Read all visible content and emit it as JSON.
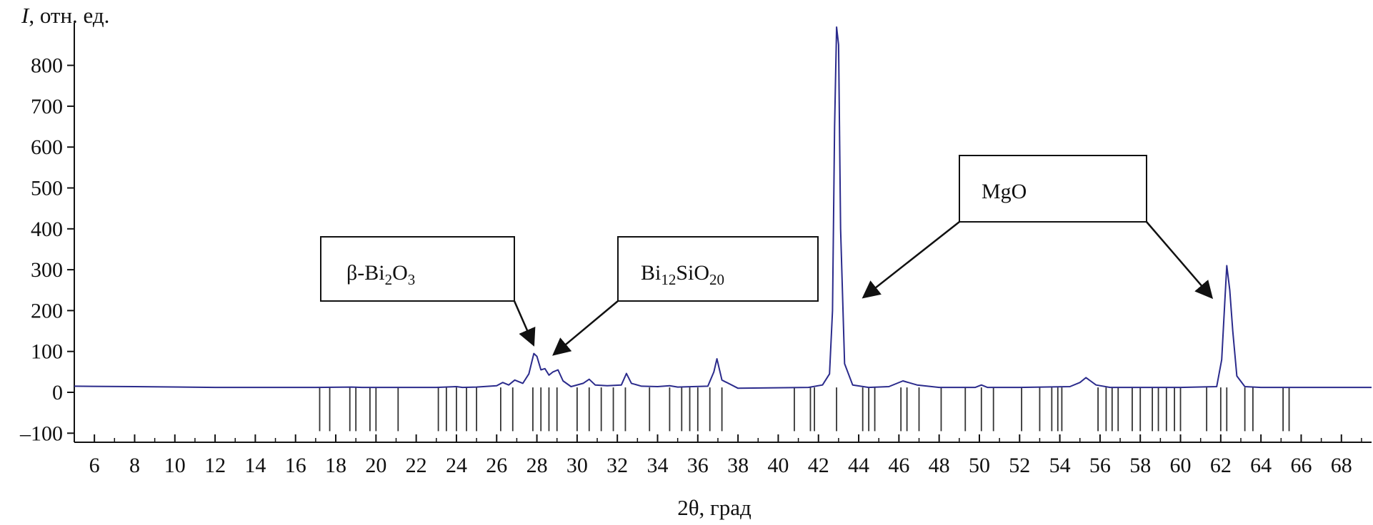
{
  "chart_data": {
    "type": "line",
    "xlabel": "2θ, град",
    "ylabel_italic": "I",
    "ylabel_rest": ", отн. ед.",
    "xlim": [
      5,
      69.5
    ],
    "ylim": [
      -110,
      880
    ],
    "xticks": [
      6,
      8,
      10,
      12,
      14,
      16,
      18,
      20,
      22,
      24,
      26,
      28,
      30,
      32,
      34,
      36,
      38,
      40,
      42,
      44,
      46,
      48,
      50,
      52,
      54,
      56,
      58,
      60,
      62,
      64,
      66,
      68
    ],
    "yticks": [
      -100,
      100,
      200,
      300,
      400,
      500,
      600,
      700,
      800
    ],
    "ytick_zero": 0,
    "series": [
      {
        "color": "#2b2b8c",
        "x": [
          5.0,
          8.0,
          12.0,
          17.0,
          18.8,
          19.3,
          20.0,
          23.0,
          24.0,
          24.3,
          25.0,
          26.0,
          26.3,
          26.6,
          26.9,
          27.3,
          27.6,
          27.85,
          28.0,
          28.2,
          28.4,
          28.6,
          28.8,
          29.05,
          29.3,
          29.7,
          30.3,
          30.6,
          30.9,
          31.5,
          32.2,
          32.45,
          32.7,
          33.2,
          34.0,
          34.6,
          35.0,
          36.5,
          36.8,
          36.95,
          37.2,
          38.0,
          41.5,
          42.2,
          42.55,
          42.7,
          42.8,
          42.9,
          43.0,
          43.1,
          43.3,
          43.7,
          44.5,
          45.5,
          46.2,
          46.9,
          48.0,
          49.8,
          50.1,
          50.4,
          52.0,
          54.5,
          55.0,
          55.3,
          55.8,
          56.5,
          58.0,
          60.0,
          61.8,
          62.05,
          62.2,
          62.3,
          62.45,
          62.6,
          62.8,
          63.2,
          64.0,
          66.0,
          68.0,
          68.5,
          69.5
        ],
        "y": [
          15,
          14,
          12,
          12,
          13,
          12,
          12,
          12,
          14,
          12,
          13,
          16,
          24,
          18,
          30,
          22,
          45,
          95,
          88,
          55,
          58,
          42,
          50,
          55,
          28,
          14,
          22,
          32,
          18,
          16,
          18,
          46,
          22,
          15,
          14,
          16,
          13,
          15,
          50,
          82,
          30,
          10,
          12,
          18,
          45,
          200,
          650,
          900,
          850,
          400,
          70,
          18,
          12,
          14,
          28,
          18,
          12,
          12,
          18,
          12,
          12,
          14,
          24,
          36,
          18,
          12,
          12,
          12,
          14,
          80,
          220,
          310,
          250,
          150,
          40,
          14,
          12,
          12,
          12,
          12,
          12
        ]
      }
    ],
    "reference_lines": [
      {
        "x": 17.2,
        "h": -95
      },
      {
        "x": 17.7,
        "h": -95
      },
      {
        "x": 18.7,
        "h": -95
      },
      {
        "x": 19.0,
        "h": -95
      },
      {
        "x": 19.7,
        "h": -95
      },
      {
        "x": 20.0,
        "h": -95
      },
      {
        "x": 21.1,
        "h": -95
      },
      {
        "x": 23.1,
        "h": -95
      },
      {
        "x": 23.5,
        "h": -95
      },
      {
        "x": 24.0,
        "h": -95
      },
      {
        "x": 24.5,
        "h": -95
      },
      {
        "x": 25.0,
        "h": -95
      },
      {
        "x": 26.2,
        "h": -95
      },
      {
        "x": 26.8,
        "h": -95
      },
      {
        "x": 27.8,
        "h": -95
      },
      {
        "x": 28.2,
        "h": -95
      },
      {
        "x": 28.6,
        "h": -95
      },
      {
        "x": 29.0,
        "h": -95
      },
      {
        "x": 30.0,
        "h": -95
      },
      {
        "x": 30.6,
        "h": -95
      },
      {
        "x": 31.2,
        "h": -95
      },
      {
        "x": 31.8,
        "h": -95
      },
      {
        "x": 32.4,
        "h": -95
      },
      {
        "x": 33.6,
        "h": -95
      },
      {
        "x": 34.6,
        "h": -95
      },
      {
        "x": 35.2,
        "h": -95
      },
      {
        "x": 35.6,
        "h": -95
      },
      {
        "x": 36.0,
        "h": -95
      },
      {
        "x": 36.6,
        "h": -95
      },
      {
        "x": 37.2,
        "h": -95
      },
      {
        "x": 40.8,
        "h": -95
      },
      {
        "x": 41.6,
        "h": -95
      },
      {
        "x": 41.8,
        "h": -95
      },
      {
        "x": 42.9,
        "h": -95
      },
      {
        "x": 44.2,
        "h": -95
      },
      {
        "x": 44.5,
        "h": -95
      },
      {
        "x": 44.8,
        "h": -95
      },
      {
        "x": 46.1,
        "h": -95
      },
      {
        "x": 46.4,
        "h": -95
      },
      {
        "x": 47.0,
        "h": -95
      },
      {
        "x": 48.1,
        "h": -95
      },
      {
        "x": 49.3,
        "h": -95
      },
      {
        "x": 50.1,
        "h": -95
      },
      {
        "x": 50.7,
        "h": -95
      },
      {
        "x": 52.1,
        "h": -95
      },
      {
        "x": 53.0,
        "h": -95
      },
      {
        "x": 53.6,
        "h": -95
      },
      {
        "x": 53.9,
        "h": -95
      },
      {
        "x": 54.1,
        "h": -95
      },
      {
        "x": 55.9,
        "h": -95
      },
      {
        "x": 56.3,
        "h": -95
      },
      {
        "x": 56.6,
        "h": -95
      },
      {
        "x": 56.9,
        "h": -95
      },
      {
        "x": 57.6,
        "h": -95
      },
      {
        "x": 58.0,
        "h": -95
      },
      {
        "x": 58.6,
        "h": -95
      },
      {
        "x": 58.9,
        "h": -95
      },
      {
        "x": 59.3,
        "h": -95
      },
      {
        "x": 59.7,
        "h": -95
      },
      {
        "x": 60.0,
        "h": -95
      },
      {
        "x": 61.3,
        "h": -95
      },
      {
        "x": 62.0,
        "h": -95
      },
      {
        "x": 62.3,
        "h": -95
      },
      {
        "x": 63.2,
        "h": -95
      },
      {
        "x": 63.6,
        "h": -95
      },
      {
        "x": 65.1,
        "h": -95
      },
      {
        "x": 65.4,
        "h": -95
      }
    ],
    "annotations": [
      {
        "label_main": "β-Bi",
        "s1": "2",
        "label_mid": "O",
        "s2": "3",
        "label_end": ""
      },
      {
        "label_main": "Bi",
        "s1": "12",
        "label_mid": "SiO",
        "s2": "20",
        "label_end": ""
      },
      {
        "label_main": "MgO",
        "s1": "",
        "label_mid": "",
        "s2": "",
        "label_end": ""
      }
    ],
    "arrow_targets": [
      {
        "x": 27.8,
        "y": 120
      },
      {
        "x": 28.9,
        "y": 95
      },
      {
        "x": 44.3,
        "y": 235
      },
      {
        "x": 61.5,
        "y": 235
      }
    ]
  }
}
